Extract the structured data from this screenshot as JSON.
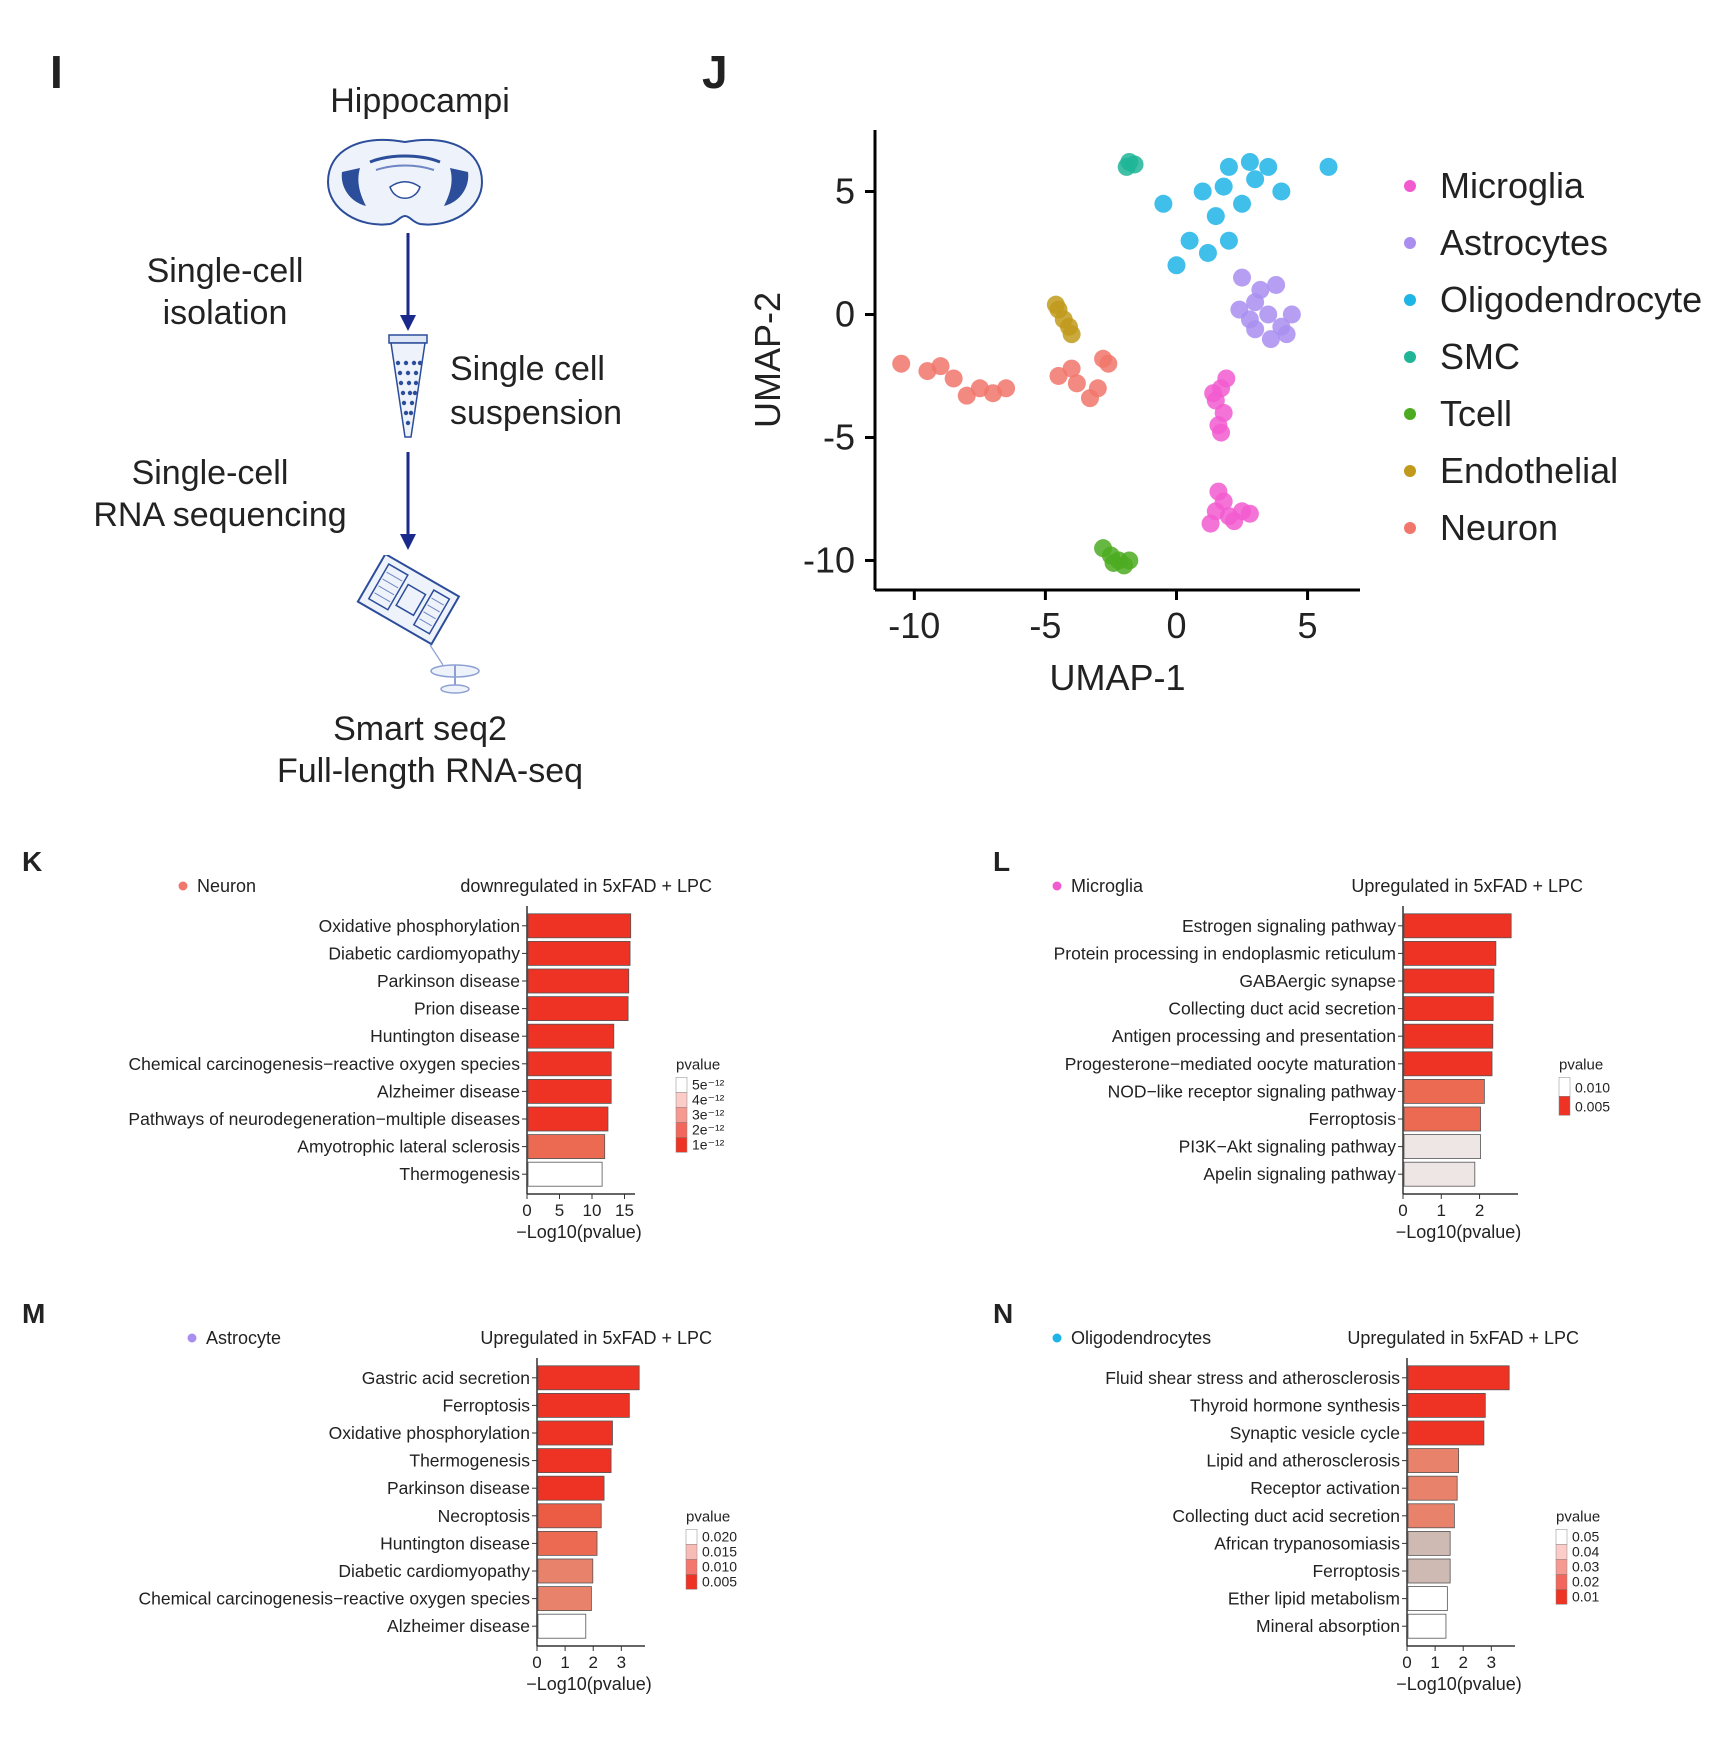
{
  "panel_i": {
    "letter": "I",
    "hippocampi": "Hippocampi",
    "isolation_line1": "Single-cell",
    "isolation_line2": "isolation",
    "suspension_line1": "Single cell",
    "suspension_line2": "suspension",
    "sequencing_line1": "Single-cell",
    "sequencing_line2": "RNA sequencing",
    "method_line1": "Smart seq2",
    "method_line2": "Full-length RNA-seq",
    "arrow_color": "#1a2a8c"
  },
  "chart_data": [
    {
      "panel": "J",
      "type": "scatter",
      "xlabel": "UMAP-1",
      "ylabel": "UMAP-2",
      "xlim": [
        -11.5,
        7
      ],
      "ylim": [
        -11.2,
        7.5
      ],
      "xticks": [
        -10,
        -5,
        0,
        5
      ],
      "yticks": [
        -10,
        -5,
        0,
        5
      ],
      "grid": false,
      "legend_position": "right",
      "series": [
        {
          "name": "Microglia",
          "color": "#f25bd0",
          "points": [
            [
              1.7,
              -3.0
            ],
            [
              1.5,
              -3.5
            ],
            [
              1.8,
              -4.0
            ],
            [
              1.6,
              -4.5
            ],
            [
              1.9,
              -2.6
            ],
            [
              1.4,
              -3.2
            ],
            [
              1.7,
              -4.8
            ],
            [
              1.5,
              -8.0
            ],
            [
              2.0,
              -8.2
            ],
            [
              2.5,
              -8.0
            ],
            [
              1.3,
              -8.5
            ],
            [
              1.8,
              -7.6
            ],
            [
              2.8,
              -8.1
            ],
            [
              1.6,
              -7.2
            ],
            [
              2.2,
              -8.4
            ]
          ]
        },
        {
          "name": "Astrocytes",
          "color": "#a98ef0",
          "points": [
            [
              2.5,
              1.5
            ],
            [
              3.0,
              0.5
            ],
            [
              3.5,
              0.0
            ],
            [
              4.0,
              -0.5
            ],
            [
              2.8,
              -0.2
            ],
            [
              3.2,
              1.0
            ],
            [
              3.8,
              1.2
            ],
            [
              4.2,
              -0.8
            ],
            [
              3.6,
              -1.0
            ],
            [
              2.4,
              0.2
            ],
            [
              3.0,
              -0.6
            ],
            [
              4.4,
              0.0
            ]
          ]
        },
        {
          "name": "Oligodendrocyte",
          "color": "#1eb4e6",
          "points": [
            [
              1.0,
              5.0
            ],
            [
              2.0,
              6.0
            ],
            [
              3.0,
              5.5
            ],
            [
              1.5,
              4.0
            ],
            [
              2.5,
              4.5
            ],
            [
              0.5,
              3.0
            ],
            [
              1.2,
              2.5
            ],
            [
              3.5,
              6.0
            ],
            [
              4.0,
              5.0
            ],
            [
              2.0,
              3.0
            ],
            [
              -0.5,
              4.5
            ],
            [
              0.0,
              2.0
            ],
            [
              2.8,
              6.2
            ],
            [
              1.8,
              5.2
            ],
            [
              5.8,
              6.0
            ]
          ]
        },
        {
          "name": "SMC",
          "color": "#1fb596",
          "points": [
            [
              -1.8,
              6.2
            ],
            [
              -1.6,
              6.1
            ],
            [
              -1.9,
              6.0
            ]
          ]
        },
        {
          "name": "Tcell",
          "color": "#4cab21",
          "points": [
            [
              -2.5,
              -9.8
            ],
            [
              -2.2,
              -10.0
            ],
            [
              -2.0,
              -10.2
            ],
            [
              -2.4,
              -10.1
            ],
            [
              -1.8,
              -10.0
            ],
            [
              -2.8,
              -9.5
            ]
          ]
        },
        {
          "name": "Endothelial",
          "color": "#c19a1b",
          "points": [
            [
              -4.5,
              0.2
            ],
            [
              -4.3,
              -0.2
            ],
            [
              -4.1,
              -0.5
            ],
            [
              -4.6,
              0.4
            ],
            [
              -4.0,
              -0.8
            ]
          ]
        },
        {
          "name": "Neuron",
          "color": "#f1766b",
          "points": [
            [
              -10.5,
              -2.0
            ],
            [
              -9.5,
              -2.3
            ],
            [
              -8.5,
              -2.6
            ],
            [
              -7.5,
              -3.0
            ],
            [
              -7.0,
              -3.2
            ],
            [
              -6.5,
              -3.0
            ],
            [
              -8.0,
              -3.3
            ],
            [
              -9.0,
              -2.1
            ],
            [
              -4.5,
              -2.5
            ],
            [
              -3.8,
              -2.8
            ],
            [
              -3.0,
              -3.0
            ],
            [
              -2.6,
              -2.0
            ],
            [
              -3.3,
              -3.4
            ],
            [
              -4.0,
              -2.2
            ],
            [
              -2.8,
              -1.8
            ]
          ]
        }
      ]
    },
    {
      "panel": "K",
      "type": "bar",
      "orientation": "horizontal",
      "subset": "Neuron",
      "subset_color": "#f1766b",
      "title": "downregulated in 5xFAD + LPC",
      "xlabel": "−Log10(pvalue)",
      "xticks": [
        "0",
        "5",
        "10",
        "15"
      ],
      "xlim": [
        0,
        16
      ],
      "categories": [
        "Oxidative phosphorylation",
        "Diabetic cardiomyopathy",
        "Parkinson disease",
        "Prion disease",
        "Huntington disease",
        "Chemical carcinogenesis−reactive oxygen species",
        "Alzheimer disease",
        "Pathways of neurodegeneration−multiple diseases",
        "Amyotrophic lateral sclerosis",
        "Thermogenesis"
      ],
      "values": [
        15.8,
        15.7,
        15.5,
        15.4,
        13.2,
        12.8,
        12.8,
        12.3,
        11.8,
        11.4
      ],
      "colors": [
        "#ee3324",
        "#ee3324",
        "#ee3324",
        "#ee3324",
        "#ee3324",
        "#ee3324",
        "#ee3324",
        "#ee3324",
        "#ec6a52",
        "#ffffff"
      ],
      "legend_title": "pvalue",
      "legend_labels": [
        "5e⁻¹²",
        "4e⁻¹²",
        "3e⁻¹²",
        "2e⁻¹²",
        "1e⁻¹²"
      ]
    },
    {
      "panel": "L",
      "type": "bar",
      "orientation": "horizontal",
      "subset": "Microglia",
      "subset_color": "#f25bd0",
      "title": "Upregulated in 5xFAD + LPC",
      "xlabel": "−Log10(pvalue)",
      "xticks": [
        "0",
        "1",
        "2"
      ],
      "xlim": [
        0,
        2.9
      ],
      "categories": [
        "Estrogen signaling pathway",
        "Protein processing in endoplasmic reticulum",
        "GABAergic synapse",
        "Collecting duct acid secretion",
        "Antigen processing and presentation",
        "Progesterone−mediated oocyte maturation",
        "NOD−like receptor signaling pathway",
        "Ferroptosis",
        "PI3K−Akt signaling pathway",
        "Apelin signaling pathway"
      ],
      "values": [
        2.8,
        2.4,
        2.35,
        2.33,
        2.32,
        2.3,
        2.1,
        2.0,
        2.0,
        1.85
      ],
      "colors": [
        "#ee3324",
        "#ee3324",
        "#ee3324",
        "#ee3324",
        "#ee3324",
        "#ee3324",
        "#ec6a52",
        "#ec6a52",
        "#eee6e4",
        "#eee6e4"
      ],
      "legend_title": "pvalue",
      "legend_labels": [
        "0.010",
        "0.005"
      ]
    },
    {
      "panel": "M",
      "type": "bar",
      "orientation": "horizontal",
      "subset": "Astrocyte",
      "subset_color": "#a98ef0",
      "title": "Upregulated in 5xFAD + LPC",
      "xlabel": "−Log10(pvalue)",
      "xticks": [
        "0",
        "1",
        "2",
        "3"
      ],
      "xlim": [
        0,
        3.7
      ],
      "categories": [
        "Gastric acid secretion",
        "Ferroptosis",
        "Oxidative phosphorylation",
        "Thermogenesis",
        "Parkinson disease",
        "Necroptosis",
        "Huntington disease",
        "Diabetic cardiomyopathy",
        "Chemical carcinogenesis−reactive oxygen species",
        "Alzheimer disease"
      ],
      "values": [
        3.6,
        3.25,
        2.65,
        2.6,
        2.35,
        2.25,
        2.1,
        1.95,
        1.9,
        1.7
      ],
      "colors": [
        "#ee3324",
        "#ee3324",
        "#ee3324",
        "#ee3324",
        "#ee3324",
        "#ec5c45",
        "#ec6a52",
        "#e9826b",
        "#e9826b",
        "#ffffff"
      ],
      "legend_title": "pvalue",
      "legend_labels": [
        "0.020",
        "0.015",
        "0.010",
        "0.005"
      ]
    },
    {
      "panel": "N",
      "type": "bar",
      "orientation": "horizontal",
      "subset": "Oligodendrocytes",
      "subset_color": "#1eb4e6",
      "title": "Upregulated in 5xFAD + LPC",
      "xlabel": "−Log10(pvalue)",
      "xticks": [
        "0",
        "1",
        "2",
        "3"
      ],
      "xlim": [
        0,
        3.7
      ],
      "categories": [
        "Fluid shear stress and atherosclerosis",
        "Thyroid hormone synthesis",
        "Synaptic vesicle cycle",
        "Lipid and atherosclerosis",
        "Receptor activation",
        "Collecting duct acid secretion",
        "African trypanosomiasis",
        "Ferroptosis",
        "Ether lipid metabolism",
        "Mineral absorption"
      ],
      "values": [
        3.6,
        2.75,
        2.7,
        1.8,
        1.75,
        1.65,
        1.5,
        1.5,
        1.4,
        1.35
      ],
      "colors": [
        "#ee3324",
        "#ee3324",
        "#ee3324",
        "#e9826b",
        "#e9826b",
        "#e9826b",
        "#cfb9b3",
        "#cfb9b3",
        "#ffffff",
        "#ffffff"
      ],
      "legend_title": "pvalue",
      "legend_labels": [
        "0.05",
        "0.04",
        "0.03",
        "0.02",
        "0.01"
      ]
    }
  ]
}
